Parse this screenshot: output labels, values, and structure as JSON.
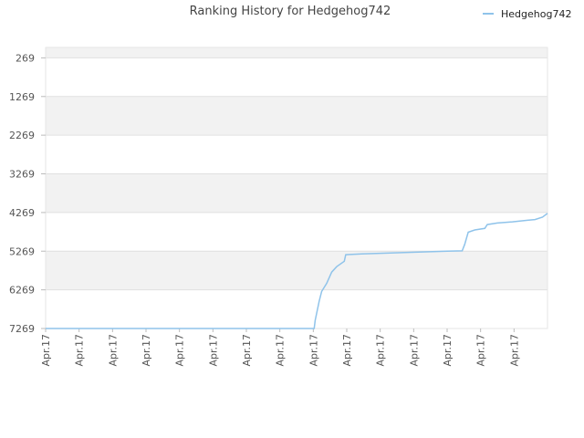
{
  "chart_data": {
    "type": "line",
    "title": "Ranking History for Hedgehog742",
    "xlabel": "",
    "ylabel": "",
    "y_inverted": true,
    "ylim": [
      7269,
      0
    ],
    "y_ticks": [
      269,
      1269,
      2269,
      3269,
      4269,
      5269,
      6269,
      7269
    ],
    "x_tick_labels": [
      "Apr.17",
      "Apr.17",
      "Apr.17",
      "Apr.17",
      "Apr.17",
      "Apr.17",
      "Apr.17",
      "Apr.17",
      "Apr.17",
      "Apr.17",
      "Apr.17",
      "Apr.17",
      "Apr.17",
      "Apr.17",
      "Apr.17"
    ],
    "legend": {
      "position": "top-right"
    },
    "grid": true,
    "colors": {
      "series": "#8fc3ea",
      "band": "#f2f2f2",
      "grid": "#e0e0e0"
    },
    "series": [
      {
        "name": "Hedgehog742",
        "x": [
          0,
          0.535,
          0.537,
          0.545,
          0.55,
          0.56,
          0.57,
          0.58,
          0.595,
          0.598,
          0.63,
          0.68,
          0.75,
          0.8,
          0.83,
          0.835,
          0.842,
          0.855,
          0.875,
          0.88,
          0.9,
          0.93,
          0.96,
          0.975,
          0.99,
          1.0
        ],
        "y": [
          7269,
          7269,
          7060,
          6560,
          6310,
          6100,
          5810,
          5670,
          5530,
          5360,
          5340,
          5320,
          5290,
          5270,
          5260,
          5090,
          4780,
          4720,
          4680,
          4580,
          4540,
          4510,
          4470,
          4450,
          4390,
          4290
        ]
      }
    ]
  }
}
